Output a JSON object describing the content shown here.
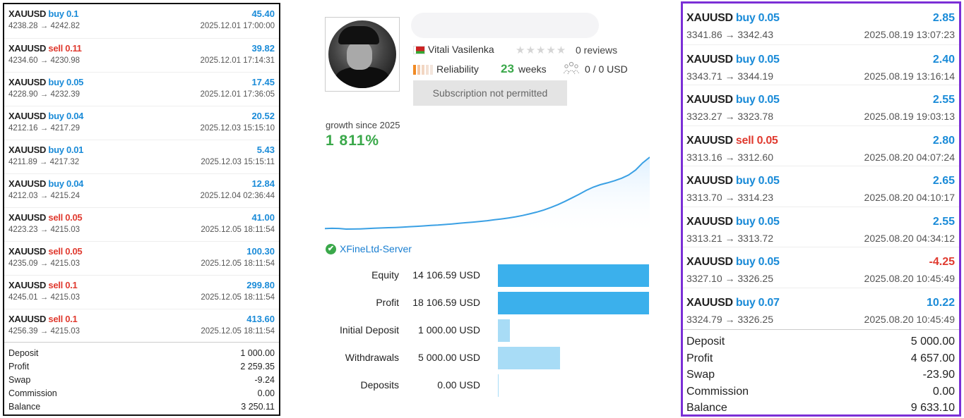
{
  "left": {
    "trades": [
      {
        "symbol": "XAUUSD",
        "dir": "buy",
        "lot": "0.1",
        "profit": "45.40",
        "prices": "4238.28 → 4242.82",
        "time": "2025.12.01 17:00:00"
      },
      {
        "symbol": "XAUUSD",
        "dir": "sell",
        "lot": "0.11",
        "profit": "39.82",
        "prices": "4234.60 → 4230.98",
        "time": "2025.12.01 17:14:31"
      },
      {
        "symbol": "XAUUSD",
        "dir": "buy",
        "lot": "0.05",
        "profit": "17.45",
        "prices": "4228.90 → 4232.39",
        "time": "2025.12.01 17:36:05"
      },
      {
        "symbol": "XAUUSD",
        "dir": "buy",
        "lot": "0.04",
        "profit": "20.52",
        "prices": "4212.16 → 4217.29",
        "time": "2025.12.03 15:15:10"
      },
      {
        "symbol": "XAUUSD",
        "dir": "buy",
        "lot": "0.01",
        "profit": "5.43",
        "prices": "4211.89 → 4217.32",
        "time": "2025.12.03 15:15:11"
      },
      {
        "symbol": "XAUUSD",
        "dir": "buy",
        "lot": "0.04",
        "profit": "12.84",
        "prices": "4212.03 → 4215.24",
        "time": "2025.12.04 02:36:44"
      },
      {
        "symbol": "XAUUSD",
        "dir": "sell",
        "lot": "0.05",
        "profit": "41.00",
        "prices": "4223.23 → 4215.03",
        "time": "2025.12.05 18:11:54"
      },
      {
        "symbol": "XAUUSD",
        "dir": "sell",
        "lot": "0.05",
        "profit": "100.30",
        "prices": "4235.09 → 4215.03",
        "time": "2025.12.05 18:11:54"
      },
      {
        "symbol": "XAUUSD",
        "dir": "sell",
        "lot": "0.1",
        "profit": "299.80",
        "prices": "4245.01 → 4215.03",
        "time": "2025.12.05 18:11:54"
      },
      {
        "symbol": "XAUUSD",
        "dir": "sell",
        "lot": "0.1",
        "profit": "413.60",
        "prices": "4256.39 → 4215.03",
        "time": "2025.12.05 18:11:54"
      }
    ],
    "summary": [
      {
        "label": "Deposit",
        "value": "1 000.00"
      },
      {
        "label": "Profit",
        "value": "2 259.35"
      },
      {
        "label": "Swap",
        "value": "-9.24"
      },
      {
        "label": "Commission",
        "value": "0.00"
      },
      {
        "label": "Balance",
        "value": "3 250.11"
      }
    ]
  },
  "middle": {
    "trader_name": "Vitali Vasilenka",
    "stars": "★★★★★",
    "reviews": "0 reviews",
    "reliability_label": "Reliability",
    "weeks_num": "23",
    "weeks_label": "weeks",
    "subscribers": "0 / 0 USD",
    "subscribe_button": "Subscription not permitted",
    "growth_label": "growth since 2025",
    "growth_value": "1 811%",
    "server": "XFineLtd-Server",
    "server_icon": "✔",
    "stats": [
      {
        "label": "Equity",
        "value": "14 106.59 USD",
        "fraction": 1.0,
        "color": "#3bb0ec"
      },
      {
        "label": "Profit",
        "value": "18 106.59 USD",
        "fraction": 1.0,
        "color": "#3bb0ec"
      },
      {
        "label": "Initial Deposit",
        "value": "1 000.00 USD",
        "fraction": 0.08,
        "color": "#a8dcf6"
      },
      {
        "label": "Withdrawals",
        "value": "5 000.00 USD",
        "fraction": 0.41,
        "color": "#a8dcf6"
      },
      {
        "label": "Deposits",
        "value": "0.00 USD",
        "fraction": 0.0,
        "color": "#a8dcf6"
      }
    ],
    "colors": {
      "accent_green": "#3aa84a",
      "link_blue": "#1a7fd1",
      "chart_line": "#3aa0e4"
    }
  },
  "right": {
    "trades": [
      {
        "symbol": "XAUUSD",
        "dir": "buy",
        "lot": "0.05",
        "profit": "2.85",
        "prices": "3341.86 → 3342.43",
        "time": "2025.08.19 13:07:23"
      },
      {
        "symbol": "XAUUSD",
        "dir": "buy",
        "lot": "0.05",
        "profit": "2.40",
        "prices": "3343.71 → 3344.19",
        "time": "2025.08.19 13:16:14"
      },
      {
        "symbol": "XAUUSD",
        "dir": "buy",
        "lot": "0.05",
        "profit": "2.55",
        "prices": "3323.27 → 3323.78",
        "time": "2025.08.19 19:03:13"
      },
      {
        "symbol": "XAUUSD",
        "dir": "sell",
        "lot": "0.05",
        "profit": "2.80",
        "prices": "3313.16 → 3312.60",
        "time": "2025.08.20 04:07:24"
      },
      {
        "symbol": "XAUUSD",
        "dir": "buy",
        "lot": "0.05",
        "profit": "2.65",
        "prices": "3313.70 → 3314.23",
        "time": "2025.08.20 04:10:17"
      },
      {
        "symbol": "XAUUSD",
        "dir": "buy",
        "lot": "0.05",
        "profit": "2.55",
        "prices": "3313.21 → 3313.72",
        "time": "2025.08.20 04:34:12"
      },
      {
        "symbol": "XAUUSD",
        "dir": "buy",
        "lot": "0.05",
        "profit": "-4.25",
        "prices": "3327.10 → 3326.25",
        "time": "2025.08.20 10:45:49"
      },
      {
        "symbol": "XAUUSD",
        "dir": "buy",
        "lot": "0.07",
        "profit": "10.22",
        "prices": "3324.79 → 3326.25",
        "time": "2025.08.20 10:45:49"
      }
    ],
    "summary": [
      {
        "label": "Deposit",
        "value": "5 000.00"
      },
      {
        "label": "Profit",
        "value": "4 657.00"
      },
      {
        "label": "Swap",
        "value": "-23.90"
      },
      {
        "label": "Commission",
        "value": "0.00"
      },
      {
        "label": "Balance",
        "value": "9 633.10"
      }
    ]
  },
  "growth_series": [
    0.0,
    0.3,
    0.1,
    -0.8,
    -0.7,
    -0.5,
    0.0,
    0.5,
    0.8,
    1.2,
    1.5,
    2.0,
    2.6,
    3.1,
    3.6,
    4.3,
    4.8,
    5.6,
    6.4,
    7.3,
    8.2,
    9.0,
    10.0,
    11.0,
    12.2,
    13.4,
    14.8,
    16.4,
    18.3,
    20.5,
    23.0,
    26.0,
    29.5,
    33.5,
    38.0,
    43.0,
    48.0,
    53.5,
    58.0,
    61.5,
    64.0,
    67.0,
    70.5,
    75.0,
    82.0,
    92.0,
    100.0
  ]
}
